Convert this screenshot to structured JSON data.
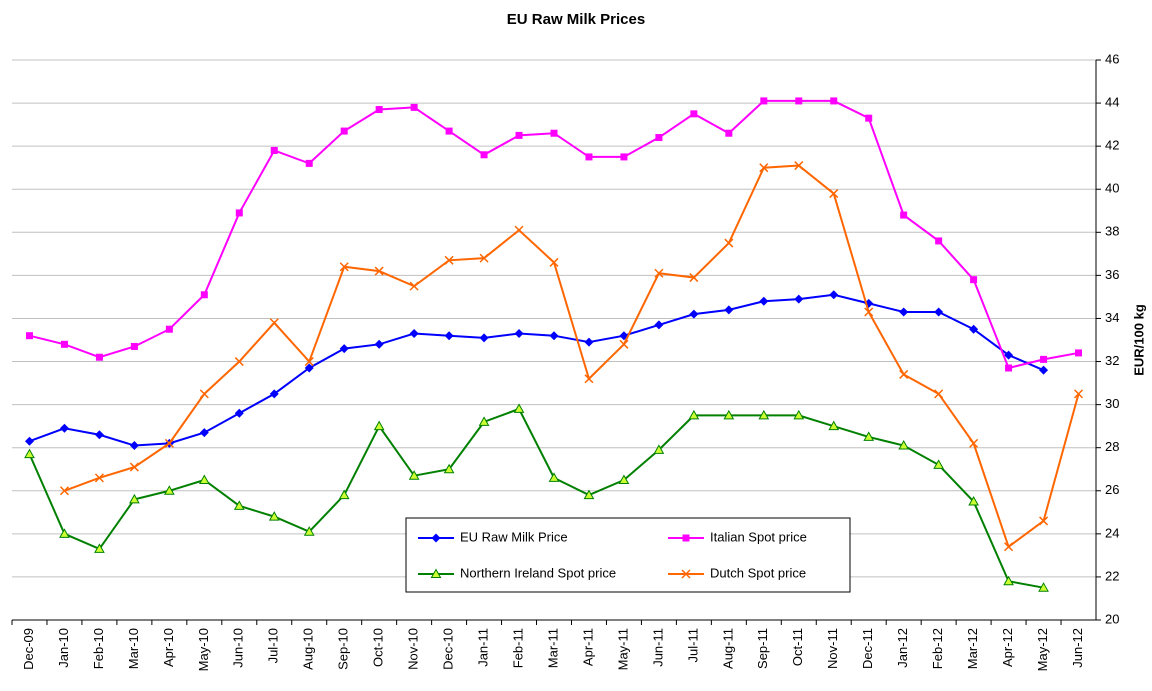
{
  "chart_data": {
    "type": "line",
    "title": "EU Raw Milk Prices",
    "y_label": "EUR/100 kg",
    "categories": [
      "Dec-09",
      "Jan-10",
      "Feb-10",
      "Mar-10",
      "Apr-10",
      "May-10",
      "Jun-10",
      "Jul-10",
      "Aug-10",
      "Sep-10",
      "Oct-10",
      "Nov-10",
      "Dec-10",
      "Jan-11",
      "Feb-11",
      "Mar-11",
      "Apr-11",
      "May-11",
      "Jun-11",
      "Jul-11",
      "Aug-11",
      "Sep-11",
      "Oct-11",
      "Nov-11",
      "Dec-11",
      "Jan-12",
      "Feb-12",
      "Mar-12",
      "Apr-12",
      "May-12",
      "Jun-12"
    ],
    "series": [
      {
        "name": "EU Raw Milk Price",
        "color": "#0000ff",
        "marker": "diamond",
        "values": [
          28.3,
          28.9,
          28.6,
          28.1,
          28.2,
          28.7,
          29.6,
          30.5,
          31.7,
          32.6,
          32.8,
          33.3,
          33.2,
          33.1,
          33.3,
          33.2,
          32.9,
          33.2,
          33.7,
          34.2,
          34.4,
          34.8,
          34.9,
          35.1,
          34.7,
          34.3,
          34.3,
          33.5,
          32.3,
          31.6,
          null
        ]
      },
      {
        "name": "Italian Spot price",
        "color": "#ff00ff",
        "marker": "square",
        "values": [
          33.2,
          32.8,
          32.2,
          32.7,
          33.5,
          35.1,
          38.9,
          41.8,
          41.2,
          42.7,
          43.7,
          43.8,
          42.7,
          41.6,
          42.5,
          42.6,
          41.5,
          41.5,
          42.4,
          43.5,
          42.6,
          44.1,
          44.1,
          44.1,
          43.3,
          38.8,
          37.6,
          35.8,
          31.7,
          32.1,
          32.4
        ]
      },
      {
        "name": "Northern Ireland Spot price",
        "color": "#008000",
        "marker": "triangle",
        "values": [
          27.7,
          24.0,
          23.3,
          25.6,
          26.0,
          26.5,
          25.3,
          24.8,
          24.1,
          25.8,
          29.0,
          26.7,
          27.0,
          29.2,
          29.8,
          26.6,
          25.8,
          26.5,
          27.9,
          29.5,
          29.5,
          29.5,
          29.5,
          29.0,
          28.5,
          28.1,
          27.2,
          25.5,
          21.8,
          21.5,
          null
        ]
      },
      {
        "name": "Dutch Spot price",
        "color": "#ff6600",
        "marker": "x",
        "values": [
          null,
          26.0,
          26.6,
          27.1,
          28.2,
          30.5,
          32.0,
          33.8,
          32.0,
          36.4,
          36.2,
          35.5,
          36.7,
          36.8,
          38.1,
          36.6,
          31.2,
          32.8,
          36.1,
          35.9,
          37.5,
          41.0,
          41.1,
          39.8,
          34.3,
          31.4,
          30.5,
          28.2,
          23.4,
          24.6,
          30.5
        ]
      }
    ],
    "ylim": [
      20,
      46
    ],
    "yticks": [
      20,
      22,
      24,
      26,
      28,
      30,
      32,
      34,
      36,
      38,
      40,
      42,
      44,
      46
    ],
    "grid": true,
    "y_axis_side": "right"
  }
}
